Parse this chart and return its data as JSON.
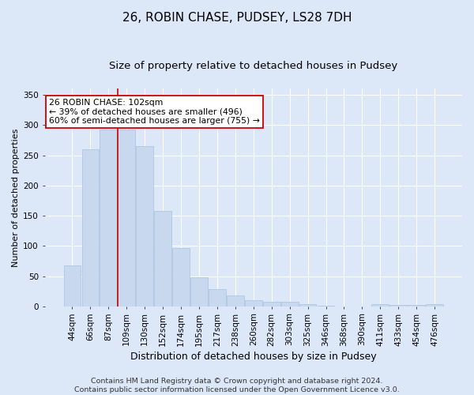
{
  "title": "26, ROBIN CHASE, PUDSEY, LS28 7DH",
  "subtitle": "Size of property relative to detached houses in Pudsey",
  "xlabel": "Distribution of detached houses by size in Pudsey",
  "ylabel": "Number of detached properties",
  "categories": [
    "44sqm",
    "66sqm",
    "87sqm",
    "109sqm",
    "130sqm",
    "152sqm",
    "174sqm",
    "195sqm",
    "217sqm",
    "238sqm",
    "260sqm",
    "282sqm",
    "303sqm",
    "325sqm",
    "346sqm",
    "368sqm",
    "390sqm",
    "411sqm",
    "433sqm",
    "454sqm",
    "476sqm"
  ],
  "values": [
    68,
    260,
    293,
    293,
    265,
    158,
    97,
    48,
    28,
    18,
    10,
    8,
    8,
    4,
    1,
    0,
    0,
    3,
    2,
    2,
    3
  ],
  "bar_color": "#c8d8ee",
  "bar_edge_color": "#a8c0de",
  "vline_x": 2.5,
  "vline_color": "#cc0000",
  "annotation_text": "26 ROBIN CHASE: 102sqm\n← 39% of detached houses are smaller (496)\n60% of semi-detached houses are larger (755) →",
  "annotation_box_facecolor": "#ffffff",
  "annotation_box_edgecolor": "#cc0000",
  "ylim": [
    0,
    360
  ],
  "yticks": [
    0,
    50,
    100,
    150,
    200,
    250,
    300,
    350
  ],
  "fig_bg_color": "#dce8f8",
  "plot_bg_color": "#dce8f8",
  "grid_color": "#ffffff",
  "footer_line1": "Contains HM Land Registry data © Crown copyright and database right 2024.",
  "footer_line2": "Contains public sector information licensed under the Open Government Licence v3.0.",
  "title_fontsize": 11,
  "subtitle_fontsize": 9.5,
  "xlabel_fontsize": 9,
  "ylabel_fontsize": 8,
  "tick_fontsize": 7.5,
  "annot_fontsize": 7.8,
  "footer_fontsize": 6.8
}
